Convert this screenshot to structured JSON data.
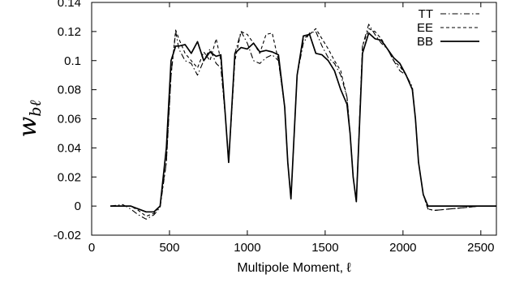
{
  "chart_data": {
    "type": "line",
    "title": "",
    "xlabel": "Multipole Moment, ℓ",
    "ylabel": "w_bℓ",
    "ylabel_main": "w",
    "ylabel_sub": "bℓ",
    "xlim": [
      0,
      2600
    ],
    "ylim": [
      -0.02,
      0.14
    ],
    "xticks": [
      0,
      500,
      1000,
      1500,
      2000,
      2500
    ],
    "xtick_labels": [
      "0",
      "500",
      "1000",
      "1500",
      "2000",
      "2500"
    ],
    "yticks": [
      -0.02,
      0,
      0.02,
      0.04,
      0.06,
      0.08,
      0.1,
      0.12,
      0.14
    ],
    "ytick_labels": [
      "-0.02",
      "0",
      "0.02",
      "0.04",
      "0.06",
      "0.08",
      "0.1",
      "0.12",
      "0.14"
    ],
    "grid": false,
    "legend_position": "top-right",
    "x": [
      120,
      200,
      250,
      300,
      350,
      400,
      440,
      480,
      510,
      540,
      560,
      600,
      640,
      680,
      720,
      760,
      800,
      830,
      860,
      880,
      920,
      960,
      1000,
      1040,
      1080,
      1120,
      1160,
      1200,
      1240,
      1260,
      1280,
      1320,
      1360,
      1400,
      1440,
      1480,
      1520,
      1560,
      1600,
      1640,
      1660,
      1680,
      1700,
      1740,
      1780,
      1820,
      1860,
      1900,
      1940,
      1980,
      2020,
      2060,
      2080,
      2100,
      2130,
      2160,
      2200,
      2300,
      2400,
      2500,
      2600
    ],
    "series": [
      {
        "name": "TT",
        "style": "dashdot",
        "color": "#000000",
        "values": [
          0,
          0.001,
          -0.002,
          -0.006,
          -0.009,
          -0.006,
          -0.001,
          0.03,
          0.09,
          0.12,
          0.108,
          0.1,
          0.098,
          0.09,
          0.1,
          0.108,
          0.098,
          0.095,
          0.06,
          0.03,
          0.105,
          0.12,
          0.112,
          0.1,
          0.098,
          0.102,
          0.104,
          0.1,
          0.068,
          0.03,
          0.005,
          0.09,
          0.112,
          0.119,
          0.12,
          0.11,
          0.102,
          0.098,
          0.09,
          0.075,
          0.05,
          0.02,
          0.003,
          0.11,
          0.125,
          0.118,
          0.112,
          0.108,
          0.1,
          0.093,
          0.09,
          0.082,
          0.06,
          0.03,
          0.008,
          -0.002,
          -0.003,
          -0.002,
          -0.001,
          0,
          0
        ]
      },
      {
        "name": "EE",
        "style": "dashed",
        "color": "#000000",
        "values": [
          0,
          0,
          0,
          -0.003,
          -0.007,
          -0.005,
          0,
          0.03,
          0.09,
          0.121,
          0.115,
          0.105,
          0.1,
          0.095,
          0.106,
          0.1,
          0.115,
          0.1,
          0.06,
          0.03,
          0.1,
          0.12,
          0.118,
          0.112,
          0.105,
          0.118,
          0.119,
          0.1,
          0.068,
          0.03,
          0.005,
          0.09,
          0.115,
          0.118,
          0.122,
          0.115,
          0.108,
          0.1,
          0.093,
          0.075,
          0.05,
          0.02,
          0.003,
          0.11,
          0.122,
          0.12,
          0.115,
          0.108,
          0.1,
          0.096,
          0.09,
          0.08,
          0.06,
          0.03,
          0.008,
          -0.002,
          -0.003,
          -0.002,
          -0.001,
          0,
          0
        ]
      },
      {
        "name": "BB",
        "style": "solid",
        "color": "#000000",
        "values": [
          0,
          0,
          0,
          -0.002,
          -0.004,
          -0.004,
          0,
          0.04,
          0.1,
          0.11,
          0.11,
          0.111,
          0.105,
          0.113,
          0.1,
          0.106,
          0.103,
          0.104,
          0.06,
          0.03,
          0.105,
          0.109,
          0.108,
          0.112,
          0.106,
          0.107,
          0.106,
          0.104,
          0.068,
          0.03,
          0.005,
          0.09,
          0.117,
          0.118,
          0.105,
          0.104,
          0.1,
          0.093,
          0.08,
          0.07,
          0.05,
          0.02,
          0.003,
          0.105,
          0.119,
          0.115,
          0.114,
          0.108,
          0.102,
          0.098,
          0.09,
          0.08,
          0.06,
          0.03,
          0.008,
          0,
          0,
          0,
          0,
          0,
          0
        ]
      }
    ]
  }
}
